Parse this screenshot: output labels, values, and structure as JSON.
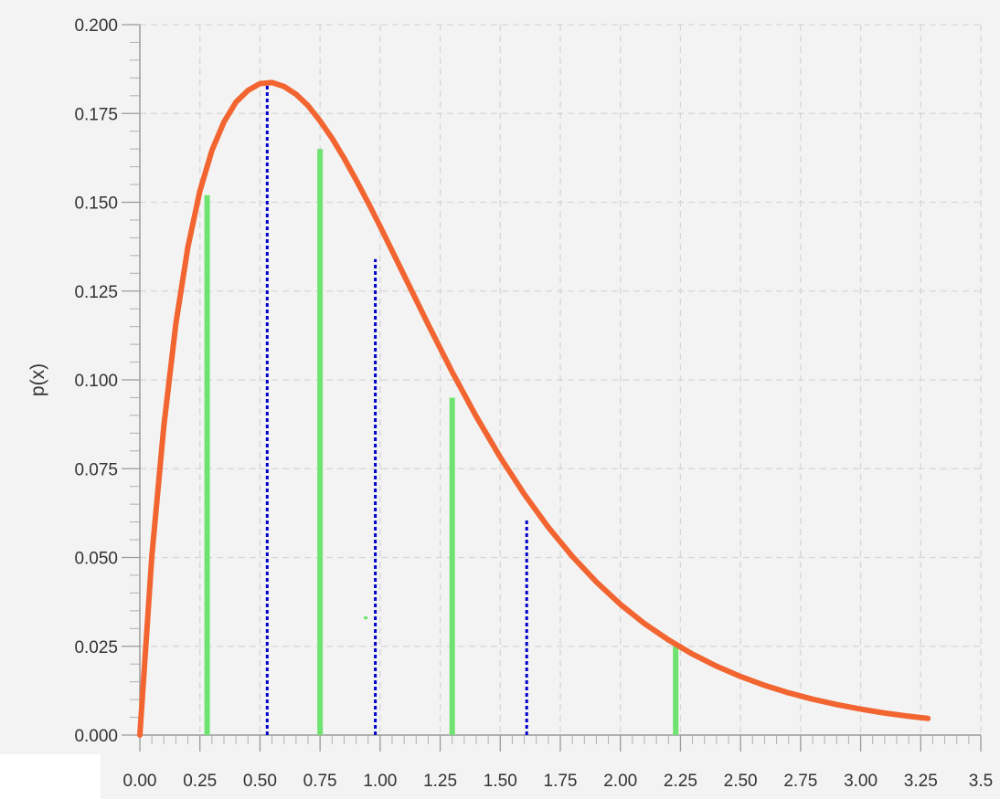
{
  "chart_data": {
    "type": "line",
    "title": "",
    "xlabel": "",
    "ylabel": "p(x)",
    "xlim": [
      0,
      3.5
    ],
    "ylim": [
      0,
      0.2
    ],
    "grid": true,
    "x_ticks": [
      "0.00",
      "0.25",
      "0.50",
      "0.75",
      "1.00",
      "1.25",
      "1.50",
      "1.75",
      "2.00",
      "2.25",
      "2.50",
      "2.75",
      "3.00",
      "3.25",
      "3.5"
    ],
    "y_ticks": [
      "0.000",
      "0.025",
      "0.050",
      "0.075",
      "0.100",
      "0.125",
      "0.150",
      "0.175",
      "0.200"
    ],
    "curve": {
      "color": "#f26430",
      "x": [
        0.0,
        0.05,
        0.1,
        0.15,
        0.2,
        0.25,
        0.3,
        0.35,
        0.4,
        0.45,
        0.5,
        0.55,
        0.6,
        0.65,
        0.7,
        0.75,
        0.8,
        0.85,
        0.9,
        0.95,
        1.0,
        1.1,
        1.2,
        1.3,
        1.4,
        1.5,
        1.6,
        1.7,
        1.8,
        1.9,
        2.0,
        2.1,
        2.2,
        2.3,
        2.4,
        2.5,
        2.6,
        2.7,
        2.8,
        2.9,
        3.0,
        3.1,
        3.2,
        3.28
      ],
      "y": [
        0.0,
        0.0505,
        0.0871,
        0.1159,
        0.1374,
        0.1532,
        0.1646,
        0.1726,
        0.1782,
        0.1815,
        0.1834,
        0.1837,
        0.1826,
        0.1804,
        0.1772,
        0.1729,
        0.168,
        0.1624,
        0.1563,
        0.1499,
        0.1432,
        0.1294,
        0.1156,
        0.1022,
        0.0897,
        0.0782,
        0.0678,
        0.0585,
        0.0503,
        0.0431,
        0.0368,
        0.0314,
        0.0268,
        0.0228,
        0.0194,
        0.0165,
        0.014,
        0.0119,
        0.0101,
        0.0086,
        0.0073,
        0.0062,
        0.0053,
        0.0047
      ]
    },
    "green_bars": {
      "color": "#6fe36f",
      "x": [
        0.28,
        0.75,
        1.3,
        2.23
      ],
      "y": [
        0.152,
        0.165,
        0.095,
        0.025
      ]
    },
    "green_dot": {
      "color": "#6fe36f",
      "x": 0.94,
      "y": 0.033
    },
    "blue_dashed_lines": {
      "color": "#0000cc",
      "x": [
        0.53,
        0.98,
        1.61
      ],
      "y": [
        0.183,
        0.134,
        0.061
      ]
    }
  }
}
